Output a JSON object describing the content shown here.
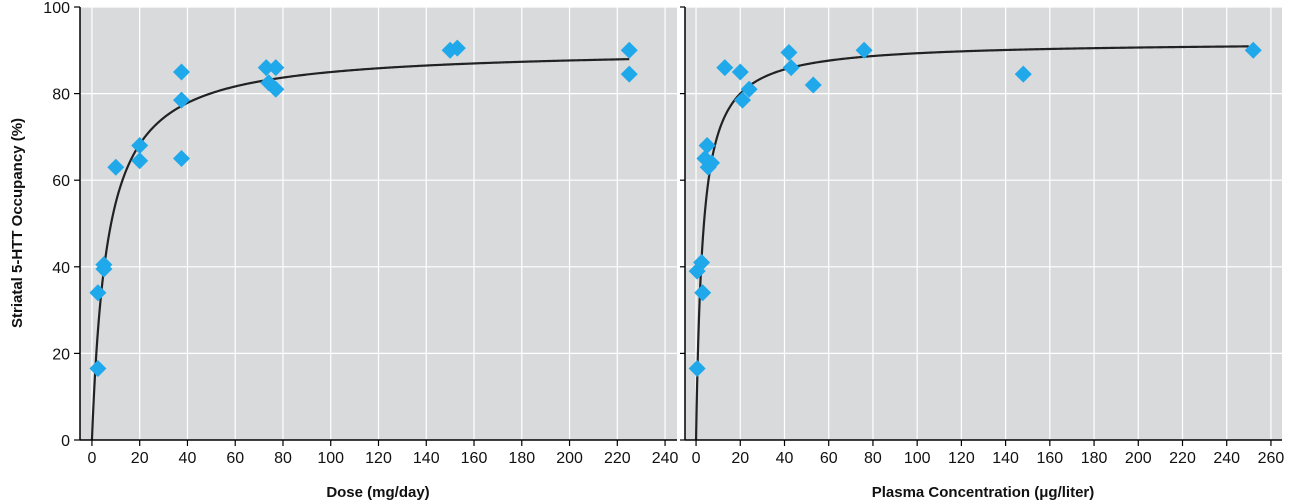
{
  "chart_data": [
    {
      "type": "scatter",
      "xlabel": "Dose (mg/day)",
      "ylabel": "Striatal 5-HTT Occupancy (%)",
      "xlim": [
        -5,
        245
      ],
      "ylim": [
        0,
        100
      ],
      "xticks": [
        0,
        20,
        40,
        60,
        80,
        100,
        120,
        140,
        160,
        180,
        200,
        220,
        240
      ],
      "yticks": [
        0,
        20,
        40,
        60,
        80,
        100
      ],
      "grid": true,
      "background_color": "#d9dadc",
      "point_color": "#1fa8ea",
      "curve_color": "#222222",
      "fit_curve": {
        "emax": 90.5,
        "ed50": 6.5
      },
      "points": [
        {
          "x": 2.5,
          "y": 16.5
        },
        {
          "x": 2.5,
          "y": 34
        },
        {
          "x": 5,
          "y": 40.5
        },
        {
          "x": 5,
          "y": 39.5
        },
        {
          "x": 10,
          "y": 63
        },
        {
          "x": 20,
          "y": 68
        },
        {
          "x": 20,
          "y": 64.5
        },
        {
          "x": 37.5,
          "y": 85
        },
        {
          "x": 37.5,
          "y": 78.5
        },
        {
          "x": 37.5,
          "y": 65
        },
        {
          "x": 73,
          "y": 86
        },
        {
          "x": 74,
          "y": 82.5
        },
        {
          "x": 77,
          "y": 86
        },
        {
          "x": 77,
          "y": 81
        },
        {
          "x": 150,
          "y": 90
        },
        {
          "x": 153,
          "y": 90.5
        },
        {
          "x": 225,
          "y": 90
        },
        {
          "x": 225,
          "y": 84.5
        }
      ]
    },
    {
      "type": "scatter",
      "xlabel": "Plasma Concentration (μg/liter)",
      "ylabel": "",
      "xlim": [
        -5,
        265
      ],
      "ylim": [
        0,
        100
      ],
      "xticks": [
        0,
        20,
        40,
        60,
        80,
        100,
        120,
        140,
        160,
        180,
        200,
        220,
        240,
        260
      ],
      "yticks": [
        0,
        20,
        40,
        60,
        80,
        100
      ],
      "grid": true,
      "background_color": "#d9dadc",
      "point_color": "#1fa8ea",
      "curve_color": "#222222",
      "fit_curve": {
        "emax": 92,
        "ec50": 3
      },
      "points": [
        {
          "x": 0.5,
          "y": 16.5
        },
        {
          "x": 0.5,
          "y": 39
        },
        {
          "x": 2.5,
          "y": 41
        },
        {
          "x": 3,
          "y": 34
        },
        {
          "x": 4,
          "y": 65
        },
        {
          "x": 5,
          "y": 68
        },
        {
          "x": 5.5,
          "y": 63
        },
        {
          "x": 7,
          "y": 64
        },
        {
          "x": 13,
          "y": 86
        },
        {
          "x": 20,
          "y": 85
        },
        {
          "x": 21,
          "y": 78.5
        },
        {
          "x": 24,
          "y": 81
        },
        {
          "x": 42,
          "y": 89.5
        },
        {
          "x": 43,
          "y": 86
        },
        {
          "x": 53,
          "y": 82
        },
        {
          "x": 76,
          "y": 90
        },
        {
          "x": 148,
          "y": 84.5
        },
        {
          "x": 252,
          "y": 90
        }
      ]
    }
  ]
}
